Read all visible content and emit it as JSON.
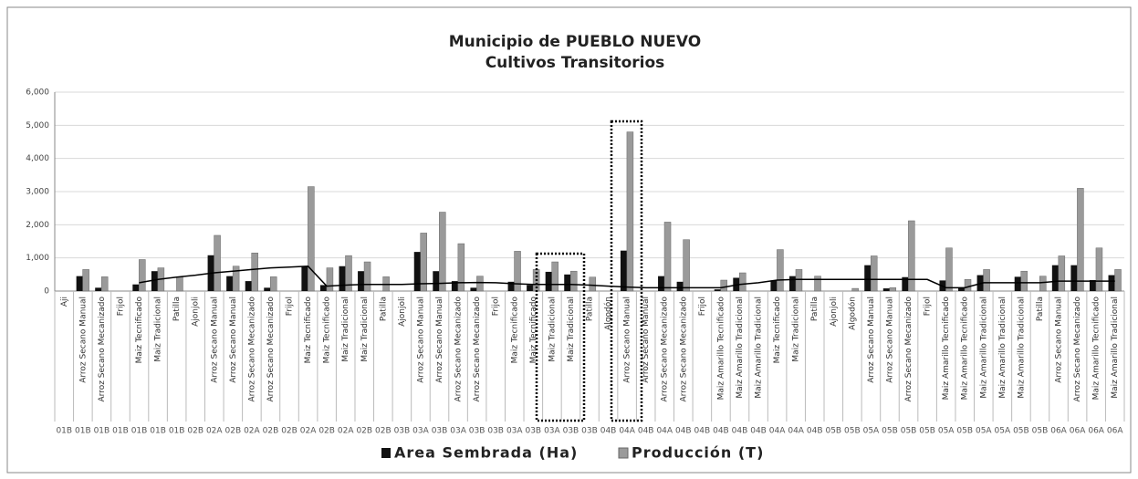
{
  "chart_data": {
    "type": "bar",
    "title": "Municipio de PUEBLO NUEVO",
    "subtitle": "Cultivos Transitorios",
    "categories": [
      "Aji",
      "Arroz Secano Manual",
      "Arroz Secano Mecanizado",
      "Frijol",
      "Maiz Tecnificado",
      "Maiz Tradicional",
      "Patilla",
      "Ajonjoli",
      "Arroz Secano Manual",
      "Arroz Secano Manual",
      "Arroz Secano Mecanizado",
      "Arroz Secano Mecanizado",
      "Frijol",
      "Maiz Tecnificado",
      "Maiz Tecnificado",
      "Maiz Tradicional",
      "Maiz Tradicional",
      "Patilla",
      "Ajonjoli",
      "Arroz Secano Manual",
      "Arroz Secano Manual",
      "Arroz Secano Mecanizado",
      "Arroz Secano Mecanizado",
      "Frijol",
      "Maiz Tecnificado",
      "Maiz Tecnificado",
      "Maiz Tradicional",
      "Maiz Tradicional",
      "Patilla",
      "Algodón",
      "Arroz Secano Manual",
      "Arroz Secano Manual",
      "Arroz Secano Mecanizado",
      "Arroz Secano Mecanizado",
      "Frijol",
      "Maiz Amarillo Tecnificado",
      "Maiz Amarillo Tradicional",
      "Maiz Amarillo Tradicional",
      "Maiz Tecnificado",
      "Maiz Tradicional",
      "Patilla",
      "Ajonjoli",
      "Algodón",
      "Arroz Secano Manual",
      "Arroz Secano Manual",
      "Arroz Secano Mecanizado",
      "Frijol",
      "Maiz Amarillo Tecnificado",
      "Maiz Amarillo Tecnificado",
      "Maiz Amarillo Tradicional",
      "Maiz Amarillo Tradicional",
      "Maiz Amarillo Tradicional",
      "Patilla",
      "Arroz Secano Manual",
      "Arroz Secano Mecanizado",
      "Maiz Amarillo Tecnificado",
      "Maiz Amarillo Tradicional"
    ],
    "groups": [
      "01B",
      "01B",
      "01B",
      "01B",
      "01B",
      "01B",
      "01B",
      "02B",
      "02A",
      "02B",
      "02A",
      "02B",
      "02B",
      "02A",
      "02B",
      "02A",
      "02B",
      "02B",
      "03B",
      "03A",
      "03B",
      "03A",
      "03B",
      "03B",
      "03A",
      "03B",
      "03A",
      "03B",
      "03B",
      "04B",
      "04A",
      "04B",
      "04A",
      "04B",
      "04B",
      "04B",
      "04B",
      "04B",
      "04A",
      "04A",
      "04B",
      "05B",
      "05B",
      "05A",
      "05B",
      "05B",
      "05B",
      "05A",
      "05B",
      "05A",
      "05A",
      "05B",
      "05B",
      "06A",
      "06A",
      "06A",
      "06A"
    ],
    "series": [
      {
        "name": "Area Sembrada (Ha)",
        "color": "#111111",
        "values": [
          0,
          450,
          100,
          0,
          200,
          600,
          0,
          0,
          1080,
          450,
          300,
          100,
          0,
          750,
          180,
          750,
          600,
          0,
          0,
          1180,
          600,
          300,
          100,
          0,
          280,
          180,
          580,
          500,
          0,
          0,
          1220,
          0,
          450,
          280,
          0,
          50,
          400,
          0,
          320,
          450,
          0,
          0,
          0,
          780,
          80,
          420,
          0,
          320,
          100,
          480,
          0,
          430,
          0,
          780,
          780,
          330,
          480
        ]
      },
      {
        "name": "Producción (T)",
        "color": "#9a9a9a",
        "values": [
          0,
          650,
          430,
          0,
          950,
          700,
          420,
          0,
          1680,
          750,
          1150,
          430,
          0,
          3150,
          700,
          1070,
          880,
          430,
          0,
          1750,
          2380,
          1430,
          450,
          0,
          1200,
          650,
          880,
          600,
          420,
          0,
          4800,
          0,
          2080,
          1550,
          0,
          330,
          550,
          0,
          1250,
          650,
          450,
          0,
          80,
          1060,
          100,
          2120,
          0,
          1300,
          350,
          650,
          0,
          600,
          450,
          1060,
          3100,
          1300,
          650
        ]
      }
    ],
    "trend": {
      "color": "#000000",
      "values": [
        null,
        null,
        null,
        null,
        250,
        350,
        420,
        480,
        550,
        600,
        650,
        700,
        720,
        750,
        150,
        180,
        200,
        200,
        200,
        220,
        230,
        250,
        260,
        250,
        220,
        200,
        200,
        200,
        180,
        150,
        120,
        100,
        100,
        100,
        100,
        100,
        200,
        250,
        330,
        350,
        350,
        350,
        350,
        350,
        350,
        350,
        350,
        100,
        100,
        250,
        250,
        250,
        250,
        300,
        300,
        300,
        300
      ]
    },
    "ylim": [
      0,
      6000
    ],
    "yticks": [
      0,
      {
        "value": 1000,
        "label": "1,000"
      },
      {
        "value": 2000,
        "label": "2,000"
      },
      {
        "value": 3000,
        "label": "3,000"
      },
      {
        "value": 4000,
        "label": "4,000"
      },
      {
        "value": 5000,
        "label": "5,000"
      },
      {
        "value": 6000,
        "label": "6,000"
      }
    ],
    "grid": true
  }
}
